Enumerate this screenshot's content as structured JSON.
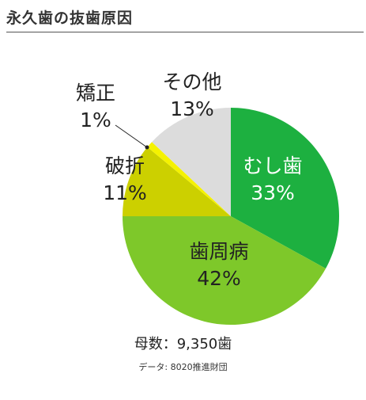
{
  "title": "永久歯の抜歯原因",
  "footer": {
    "base": "母数：9,350歯",
    "source": "データ: 8020推進財団"
  },
  "chart_data": {
    "type": "pie",
    "title": "永久歯の抜歯原因",
    "start_angle_deg": 0,
    "direction": "clockwise",
    "slices": [
      {
        "label": "むし歯",
        "value": 33,
        "value_label": "33%",
        "color": "#1db040"
      },
      {
        "label": "歯周病",
        "value": 42,
        "value_label": "42%",
        "color": "#7ec82a"
      },
      {
        "label": "破折",
        "value": 11,
        "value_label": "11%",
        "color": "#ccd000"
      },
      {
        "label": "矯正",
        "value": 1,
        "value_label": "1%",
        "color": "#f5f200"
      },
      {
        "label": "その他",
        "value": 13,
        "value_label": "13%",
        "color": "#dcdcdc"
      }
    ]
  }
}
